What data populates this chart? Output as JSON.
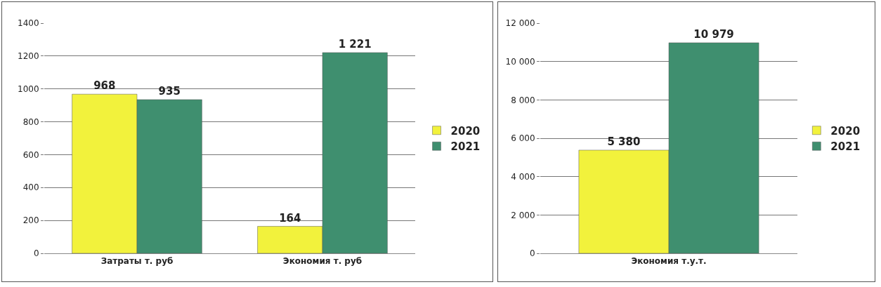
{
  "chart_data": [
    {
      "type": "bar",
      "categories": [
        "Затраты т. руб",
        "Экономия т. руб"
      ],
      "series": [
        {
          "name": "2020",
          "color": "#f2f23c",
          "values": [
            968,
            164
          ],
          "value_labels": [
            "968",
            "164"
          ]
        },
        {
          "name": "2021",
          "color": "#3f8f6f",
          "values": [
            935,
            1221
          ],
          "value_labels": [
            "935",
            "1 221"
          ]
        }
      ],
      "ylim": [
        0,
        1400
      ],
      "yticks": [
        0,
        200,
        400,
        600,
        800,
        1000,
        1200,
        1400
      ],
      "grid": "y",
      "legend": "right"
    },
    {
      "type": "bar",
      "categories": [
        "Экономия т.у.т."
      ],
      "series": [
        {
          "name": "2020",
          "color": "#f2f23c",
          "values": [
            5380
          ],
          "value_labels": [
            "5 380"
          ]
        },
        {
          "name": "2021",
          "color": "#3f8f6f",
          "values": [
            10979
          ],
          "value_labels": [
            "10 979"
          ]
        }
      ],
      "ylim": [
        0,
        12000
      ],
      "yticks": [
        {
          "value": 0,
          "label": "0"
        },
        {
          "value": 2000,
          "label": "2 000"
        },
        {
          "value": 4000,
          "label": "4 000"
        },
        {
          "value": 6000,
          "label": "6 000"
        },
        {
          "value": 8000,
          "label": "8 000"
        },
        {
          "value": 10000,
          "label": "10 000"
        },
        {
          "value": 12000,
          "label": "12 000"
        }
      ],
      "grid": "y",
      "legend": "right"
    }
  ]
}
